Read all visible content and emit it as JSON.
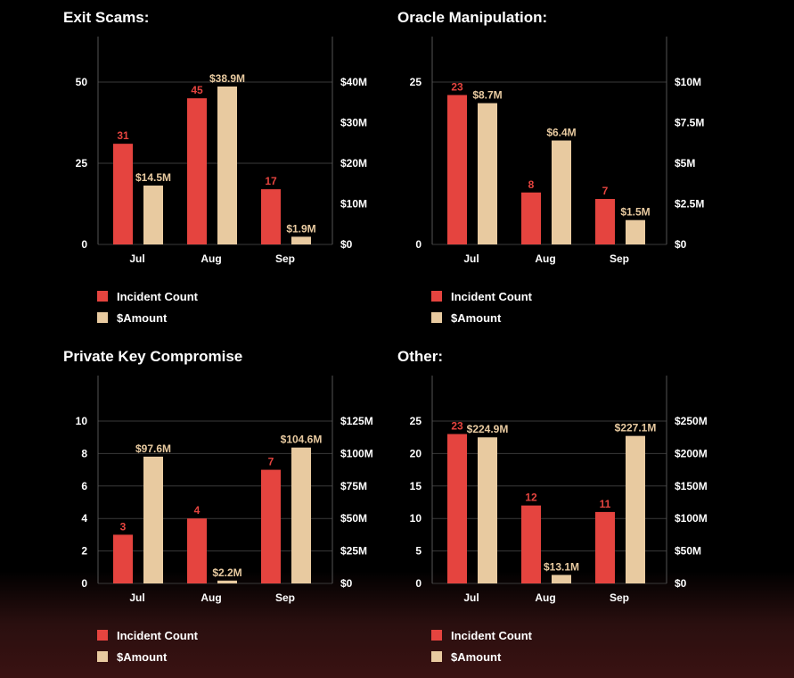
{
  "colors": {
    "count": "#e5443f",
    "amount": "#e8caa0",
    "grid": "#3a3a3a",
    "axis": "#555555"
  },
  "legend": {
    "count_label": "Incident Count",
    "amount_label": "$Amount"
  },
  "chart_data": [
    {
      "type": "bar",
      "title": "Exit Scams:",
      "categories": [
        "Jul",
        "Aug",
        "Sep"
      ],
      "series": [
        {
          "name": "Incident Count",
          "axis": "left",
          "values": [
            31,
            45,
            17
          ],
          "labels": [
            "31",
            "45",
            "17"
          ]
        },
        {
          "name": "$Amount",
          "axis": "right",
          "values": [
            14.5,
            38.9,
            1.9
          ],
          "labels": [
            "$14.5M",
            "$38.9M",
            "$1.9M"
          ]
        }
      ],
      "left_axis": {
        "ylim": [
          0,
          64
        ],
        "ticks": [
          0,
          25,
          50
        ],
        "tick_labels": [
          "0",
          "25",
          "50"
        ]
      },
      "right_axis": {
        "ylim": [
          0,
          51.2
        ],
        "ticks": [
          0,
          10,
          20,
          30,
          40
        ],
        "tick_labels": [
          "$0",
          "$10M",
          "$20M",
          "$30M",
          "$40M"
        ]
      },
      "grid": true
    },
    {
      "type": "bar",
      "title": "Oracle Manipulation:",
      "categories": [
        "Jul",
        "Aug",
        "Sep"
      ],
      "series": [
        {
          "name": "Incident Count",
          "axis": "left",
          "values": [
            23,
            8,
            7
          ],
          "labels": [
            "23",
            "8",
            "7"
          ]
        },
        {
          "name": "$Amount",
          "axis": "right",
          "values": [
            8.7,
            6.4,
            1.5
          ],
          "labels": [
            "$8.7M",
            "$6.4M",
            "$1.5M"
          ]
        }
      ],
      "left_axis": {
        "ylim": [
          0,
          32
        ],
        "ticks": [
          0,
          25
        ],
        "tick_labels": [
          "0",
          "25"
        ]
      },
      "right_axis": {
        "ylim": [
          0,
          12.8
        ],
        "ticks": [
          0,
          2.5,
          5,
          7.5,
          10
        ],
        "tick_labels": [
          "$0",
          "$2.5M",
          "$5M",
          "$7.5M",
          "$10M"
        ]
      },
      "grid": true
    },
    {
      "type": "bar",
      "title": "Private Key Compromise",
      "categories": [
        "Jul",
        "Aug",
        "Sep"
      ],
      "series": [
        {
          "name": "Incident Count",
          "axis": "left",
          "values": [
            3,
            4,
            7
          ],
          "labels": [
            "3",
            "4",
            "7"
          ]
        },
        {
          "name": "$Amount",
          "axis": "right",
          "values": [
            97.6,
            2.2,
            104.6
          ],
          "labels": [
            "$97.6M",
            "$2.2M",
            "$104.6M"
          ]
        }
      ],
      "left_axis": {
        "ylim": [
          0,
          12.8
        ],
        "ticks": [
          0,
          2,
          4,
          6,
          8,
          10
        ],
        "tick_labels": [
          "0",
          "2",
          "4",
          "6",
          "8",
          "10"
        ]
      },
      "right_axis": {
        "ylim": [
          0,
          160
        ],
        "ticks": [
          0,
          25,
          50,
          75,
          100,
          125
        ],
        "tick_labels": [
          "$0",
          "$25M",
          "$50M",
          "$75M",
          "$100M",
          "$125M"
        ]
      },
      "grid": true
    },
    {
      "type": "bar",
      "title": "Other:",
      "categories": [
        "Jul",
        "Aug",
        "Sep"
      ],
      "series": [
        {
          "name": "Incident Count",
          "axis": "left",
          "values": [
            23,
            12,
            11
          ],
          "labels": [
            "23",
            "12",
            "11"
          ]
        },
        {
          "name": "$Amount",
          "axis": "right",
          "values": [
            224.9,
            13.1,
            227.1
          ],
          "labels": [
            "$224.9M",
            "$13.1M",
            "$227.1M"
          ]
        }
      ],
      "left_axis": {
        "ylim": [
          0,
          32
        ],
        "ticks": [
          0,
          5,
          10,
          15,
          20,
          25
        ],
        "tick_labels": [
          "0",
          "5",
          "10",
          "15",
          "20",
          "25"
        ]
      },
      "right_axis": {
        "ylim": [
          0,
          320
        ],
        "ticks": [
          0,
          50,
          100,
          150,
          200,
          250
        ],
        "tick_labels": [
          "$0",
          "$50M",
          "$100M",
          "$150M",
          "$200M",
          "$250M"
        ]
      },
      "grid": true
    }
  ]
}
